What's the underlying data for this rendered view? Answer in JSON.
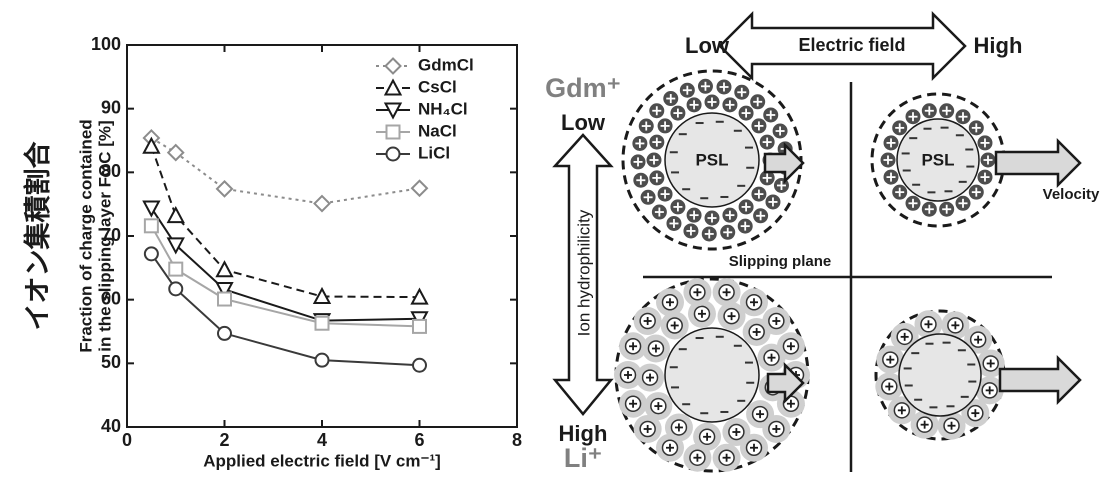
{
  "chart_data": {
    "type": "line",
    "xlabel": "Applied electric field [V cm⁻¹]",
    "ylabel": [
      "Fraction of charge contained",
      "in the slipping layer FOC [%]"
    ],
    "ylabel_ja": "イオン集積割合",
    "x": [
      0.5,
      1,
      2,
      4,
      6
    ],
    "series": [
      {
        "name": "GdmCl",
        "color": "#8c8c8c",
        "marker": "diamond",
        "linestyle": "dotted",
        "values": [
          85.4,
          83.1,
          77.4,
          75.1,
          77.5
        ]
      },
      {
        "name": "CsCl",
        "color": "#1a1a1a",
        "marker": "triangle-up",
        "linestyle": "dashed",
        "values": [
          84.1,
          73.2,
          64.7,
          60.5,
          60.4
        ]
      },
      {
        "name": "NH₄Cl",
        "color": "#1a1a1a",
        "marker": "triangle-down",
        "linestyle": "solid",
        "values": [
          74.4,
          68.6,
          61.6,
          56.7,
          57.0
        ]
      },
      {
        "name": "NaCl",
        "color": "#a6a6a6",
        "marker": "square",
        "linestyle": "solid",
        "values": [
          71.6,
          64.8,
          60.1,
          56.3,
          55.8
        ]
      },
      {
        "name": "LiCl",
        "color": "#3a3a3a",
        "marker": "circle",
        "linestyle": "solid",
        "values": [
          67.2,
          61.7,
          54.7,
          50.5,
          49.7
        ]
      }
    ],
    "xlim": [
      0,
      8
    ],
    "xticks": [
      0,
      2,
      4,
      6,
      8
    ],
    "ylim": [
      40,
      100
    ],
    "yticks": [
      40,
      50,
      60,
      70,
      80,
      90,
      100
    ],
    "legend": "upper right",
    "grid": false
  },
  "diagram": {
    "field_low": "Low",
    "field_label": "Electric field",
    "field_high": "High",
    "ion_top": "Gdm⁺",
    "hydro_low": "Low",
    "hydro_label": "Ion hydrophilicity",
    "hydro_high": "High",
    "ion_bottom": "Li⁺",
    "particle_1": "PSL",
    "particle_2": "PSL",
    "velocity": "Velocity",
    "slipping_plane": "Slipping plane"
  }
}
